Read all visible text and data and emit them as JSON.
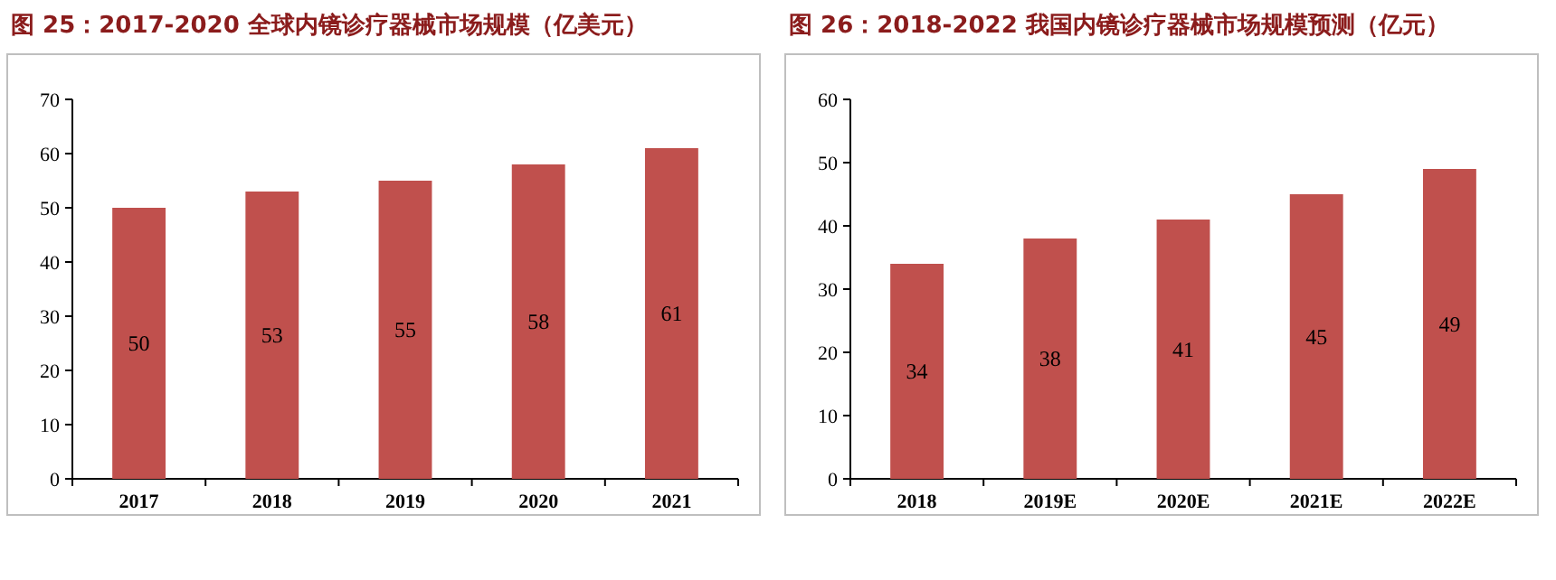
{
  "chart_data": [
    {
      "type": "bar",
      "title": "图 25：2017-2020 全球内镜诊疗器械市场规模（亿美元）",
      "categories": [
        "2017",
        "2018",
        "2019",
        "2020",
        "2021"
      ],
      "values": [
        50,
        53,
        55,
        58,
        61
      ],
      "color": "#c0504d",
      "ylim": [
        0,
        70
      ],
      "yticks": [
        0,
        10,
        20,
        30,
        40,
        50,
        60,
        70
      ],
      "data_labels": true
    },
    {
      "type": "bar",
      "title": "图 26：2018-2022 我国内镜诊疗器械市场规模预测（亿元）",
      "categories": [
        "2018",
        "2019E",
        "2020E",
        "2021E",
        "2022E"
      ],
      "values": [
        34,
        38,
        41,
        45,
        49
      ],
      "color": "#c0504d",
      "ylim": [
        0,
        60
      ],
      "yticks": [
        0,
        10,
        20,
        30,
        40,
        50,
        60
      ],
      "data_labels": true
    }
  ]
}
